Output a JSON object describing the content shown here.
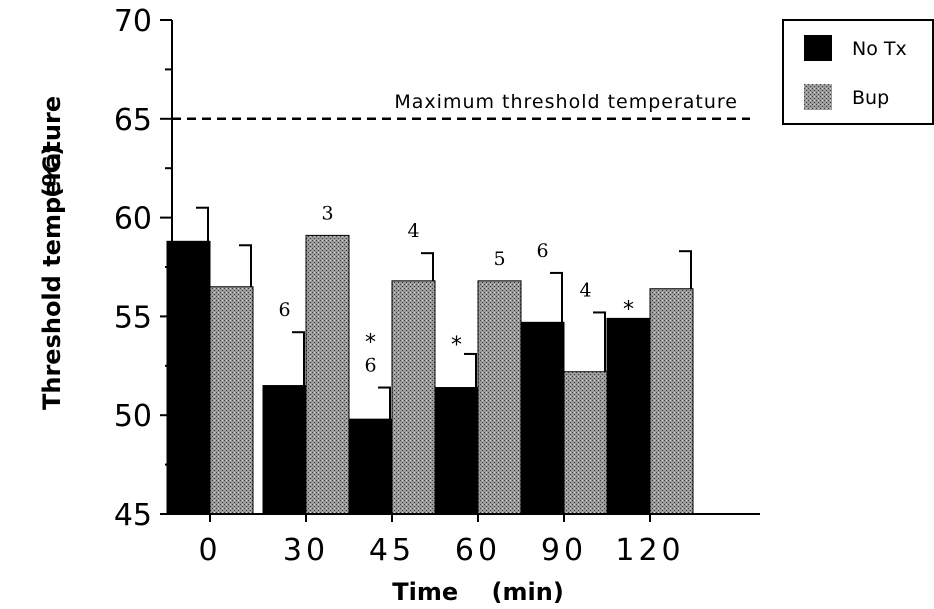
{
  "chart_data": {
    "type": "bar",
    "categories": [
      "0",
      "30",
      "45",
      "60",
      "90",
      "120"
    ],
    "series": [
      {
        "name": "No Tx",
        "color": "#000000",
        "values": [
          58.8,
          51.5,
          49.8,
          51.4,
          54.7,
          54.9
        ],
        "errors": [
          1.7,
          2.7,
          1.6,
          1.7,
          2.5,
          null
        ],
        "n_labels": [
          "",
          "6",
          "6",
          "",
          "6",
          ""
        ],
        "significant": [
          false,
          false,
          true,
          true,
          false,
          true
        ]
      },
      {
        "name": "Bup",
        "color": "#8a8a8a",
        "values": [
          56.5,
          59.1,
          56.8,
          56.8,
          52.2,
          56.4
        ],
        "errors": [
          2.1,
          null,
          1.4,
          null,
          3.0,
          1.9
        ],
        "n_labels": [
          "",
          "3",
          "4",
          "5",
          "4",
          ""
        ],
        "significant": [
          false,
          false,
          false,
          false,
          false,
          false
        ]
      }
    ],
    "xlabel": "Time    (min)",
    "ylabel": "Threshold temperature",
    "ylabel_unit": "(ºC)",
    "ylim": [
      45,
      70
    ],
    "yticks": [
      "45",
      "50",
      "55",
      "60",
      "65",
      "70"
    ],
    "reference_line": {
      "value": 65,
      "label": "Maximum  threshold  temperature",
      "style": "dashed"
    },
    "significance_marker": "*",
    "legend": {
      "placement": "top-right",
      "entries": [
        "No Tx",
        "Bup"
      ]
    },
    "grid": false
  }
}
